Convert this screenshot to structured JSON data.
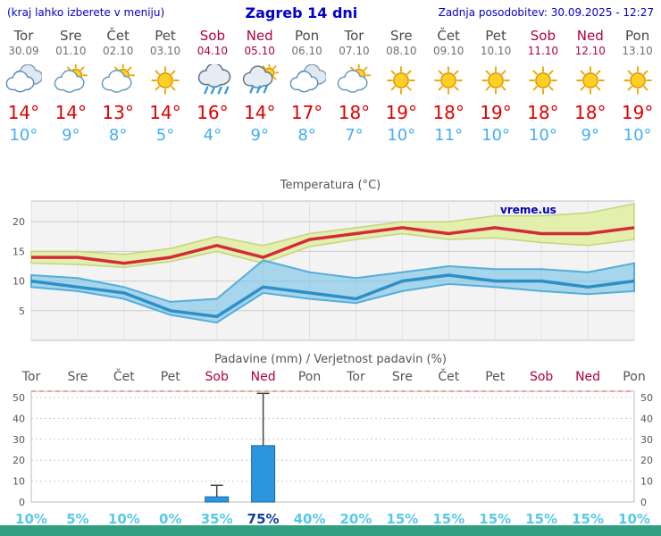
{
  "header": {
    "left_note": "(kraj lahko izberete v meniju)",
    "title": "Zagreb 14 dni",
    "updated": "Zadnja posodobitev: 30.09.2025 - 12:27"
  },
  "days": [
    {
      "name": "Tor",
      "date": "30.09",
      "icon": "cloudy",
      "tmax": "14°",
      "tmin": "10°",
      "weekend": false
    },
    {
      "name": "Sre",
      "date": "01.10",
      "icon": "partly-cloudy",
      "tmax": "14°",
      "tmin": "9°",
      "weekend": false
    },
    {
      "name": "Čet",
      "date": "02.10",
      "icon": "partly-cloudy",
      "tmax": "13°",
      "tmin": "8°",
      "weekend": false
    },
    {
      "name": "Pet",
      "date": "03.10",
      "icon": "sunny",
      "tmax": "14°",
      "tmin": "5°",
      "weekend": false
    },
    {
      "name": "Sob",
      "date": "04.10",
      "icon": "rain",
      "tmax": "16°",
      "tmin": "4°",
      "weekend": true
    },
    {
      "name": "Ned",
      "date": "05.10",
      "icon": "rain-sun",
      "tmax": "14°",
      "tmin": "9°",
      "weekend": true
    },
    {
      "name": "Pon",
      "date": "06.10",
      "icon": "cloudy",
      "tmax": "17°",
      "tmin": "8°",
      "weekend": false
    },
    {
      "name": "Tor",
      "date": "07.10",
      "icon": "partly-cloudy",
      "tmax": "18°",
      "tmin": "7°",
      "weekend": false
    },
    {
      "name": "Sre",
      "date": "08.10",
      "icon": "sunny",
      "tmax": "19°",
      "tmin": "10°",
      "weekend": false
    },
    {
      "name": "Čet",
      "date": "09.10",
      "icon": "sunny",
      "tmax": "18°",
      "tmin": "11°",
      "weekend": false
    },
    {
      "name": "Pet",
      "date": "10.10",
      "icon": "sunny",
      "tmax": "19°",
      "tmin": "10°",
      "weekend": false
    },
    {
      "name": "Sob",
      "date": "11.10",
      "icon": "sunny",
      "tmax": "18°",
      "tmin": "10°",
      "weekend": true
    },
    {
      "name": "Ned",
      "date": "12.10",
      "icon": "sunny",
      "tmax": "18°",
      "tmin": "9°",
      "weekend": true
    },
    {
      "name": "Pon",
      "date": "13.10",
      "icon": "sunny",
      "tmax": "19°",
      "tmin": "10°",
      "weekend": false
    }
  ],
  "chart_data": [
    {
      "type": "area",
      "title": "Temperatura (°C)",
      "watermark": "vreme.us",
      "x": [
        "Tor 30.09",
        "Sre 01.10",
        "Čet 02.10",
        "Pet 03.10",
        "Sob 04.10",
        "Ned 05.10",
        "Pon 06.10",
        "Tor 07.10",
        "Sre 08.10",
        "Čet 09.10",
        "Pet 10.10",
        "Sob 11.10",
        "Ned 12.10",
        "Pon 13.10"
      ],
      "ylim": [
        0,
        23.5
      ],
      "yticks": [
        5,
        10,
        15,
        20
      ],
      "series": [
        {
          "name": "tmax",
          "color": "#d42b3a",
          "values": [
            14,
            14,
            13,
            14,
            16,
            14,
            17,
            18,
            19,
            18,
            19,
            18,
            18,
            19
          ]
        },
        {
          "name": "tmax_band_upper",
          "color": "#e3efad",
          "values": [
            15,
            15,
            14.5,
            15.5,
            17.5,
            16,
            18,
            19,
            20,
            20,
            21,
            21,
            21.5,
            23
          ]
        },
        {
          "name": "tmax_band_lower",
          "color": "#e3efad",
          "values": [
            13,
            12.8,
            12.3,
            13.3,
            15,
            13,
            15.8,
            17,
            18,
            17,
            17.3,
            16.5,
            16,
            17
          ]
        },
        {
          "name": "tmin",
          "color": "#2d8fc7",
          "values": [
            10,
            9,
            8,
            5,
            4,
            9,
            8,
            7,
            10,
            11,
            10,
            10,
            9,
            10
          ]
        },
        {
          "name": "tmin_band_upper",
          "color": "#7cc4e8",
          "values": [
            11,
            10.5,
            9,
            6.5,
            7,
            13.5,
            11.5,
            10.5,
            11.5,
            12.5,
            12,
            12,
            11.5,
            13
          ]
        },
        {
          "name": "tmin_band_lower",
          "color": "#7cc4e8",
          "values": [
            9,
            8.3,
            7,
            4.3,
            3,
            8,
            7,
            6.3,
            8.3,
            9.5,
            9,
            8.3,
            7.8,
            8.3
          ]
        }
      ]
    },
    {
      "type": "bar",
      "title": "Padavine (mm) / Verjetnost padavin (%)",
      "categories": [
        "Tor",
        "Sre",
        "Čet",
        "Pet",
        "Sob",
        "Ned",
        "Pon",
        "Tor",
        "Sre",
        "Čet",
        "Pet",
        "Sob",
        "Ned",
        "Pon"
      ],
      "values_mm": [
        0,
        0,
        0,
        0,
        2.5,
        27,
        0,
        0,
        0,
        0,
        0,
        0,
        0,
        0
      ],
      "whisker_max_mm": [
        0,
        0,
        0,
        0,
        8,
        52,
        0,
        0,
        0,
        0,
        0,
        0,
        0,
        0
      ],
      "probability_pct": [
        10,
        5,
        10,
        0,
        35,
        75,
        40,
        20,
        15,
        15,
        15,
        15,
        15,
        10
      ],
      "ylim": [
        0,
        53
      ],
      "yticks": [
        0,
        10,
        20,
        30,
        40,
        50
      ]
    }
  ],
  "colors": {
    "header_text": "#0000cc",
    "temp_max": "#e00000",
    "temp_min": "#45aef2",
    "weekend": "#b00040",
    "probability": "#58c8ea",
    "probability_high": "#1040a0",
    "bar_fill": "#2b95e0",
    "footer": "#30a080"
  }
}
